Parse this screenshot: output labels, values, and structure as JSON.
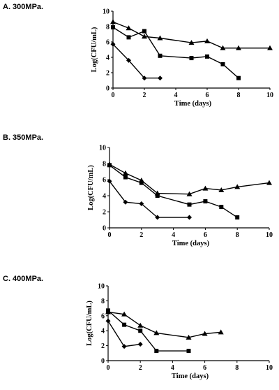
{
  "chart_data": [
    {
      "type": "line",
      "title": "A. 300MPa.",
      "xlabel": "Time (days)",
      "ylabel": "Log(CFU/mL)",
      "xlim": [
        0,
        10
      ],
      "ylim": [
        0,
        10
      ],
      "xticks": [
        0,
        2,
        4,
        6,
        8,
        10
      ],
      "yticks": [
        0,
        2,
        4,
        6,
        8,
        10
      ],
      "grid": false,
      "series": [
        {
          "marker": "triangle",
          "x": [
            0,
            1,
            2,
            3,
            5,
            6,
            7,
            8,
            10
          ],
          "y": [
            8.6,
            7.8,
            6.7,
            6.5,
            5.9,
            6.1,
            5.2,
            5.2,
            5.2
          ]
        },
        {
          "marker": "square",
          "x": [
            0,
            1,
            2,
            3,
            5,
            6,
            7,
            8
          ],
          "y": [
            7.9,
            6.6,
            7.4,
            4.2,
            3.9,
            4.1,
            3.1,
            1.3
          ]
        },
        {
          "marker": "diamond",
          "x": [
            0,
            1,
            2,
            3
          ],
          "y": [
            5.7,
            3.6,
            1.3,
            1.3
          ]
        }
      ]
    },
    {
      "type": "line",
      "title": "B. 350MPa.",
      "xlabel": "Time (days)",
      "ylabel": "Log(CFU/mL)",
      "xlim": [
        0,
        10
      ],
      "ylim": [
        0,
        10
      ],
      "xticks": [
        0,
        2,
        4,
        6,
        8,
        10
      ],
      "yticks": [
        0,
        2,
        4,
        6,
        8,
        10
      ],
      "grid": false,
      "series": [
        {
          "marker": "triangle",
          "x": [
            0,
            1,
            2,
            3,
            5,
            6,
            7,
            8,
            10
          ],
          "y": [
            7.9,
            6.8,
            5.9,
            4.3,
            4.2,
            4.9,
            4.7,
            5.1,
            5.6
          ]
        },
        {
          "marker": "square",
          "x": [
            0,
            1,
            2,
            3,
            5,
            6,
            7,
            8
          ],
          "y": [
            7.8,
            6.3,
            5.6,
            4.0,
            2.9,
            3.3,
            2.6,
            1.3
          ]
        },
        {
          "marker": "diamond",
          "x": [
            0,
            1,
            2,
            3,
            5
          ],
          "y": [
            5.8,
            3.2,
            3.0,
            1.3,
            1.3
          ]
        }
      ]
    },
    {
      "type": "line",
      "title": "C. 400MPa.",
      "xlabel": "Time (days)",
      "ylabel": "Log(CFU/mL)",
      "xlim": [
        0,
        10
      ],
      "ylim": [
        0,
        10
      ],
      "xticks": [
        0,
        2,
        4,
        6,
        8,
        10
      ],
      "yticks": [
        0,
        2,
        4,
        6,
        8,
        10
      ],
      "grid": false,
      "series": [
        {
          "marker": "triangle",
          "x": [
            0,
            1,
            2,
            3,
            5,
            6,
            7
          ],
          "y": [
            6.5,
            6.2,
            4.7,
            3.7,
            3.1,
            3.6,
            3.8
          ]
        },
        {
          "marker": "square",
          "x": [
            0,
            1,
            2,
            3,
            5
          ],
          "y": [
            6.7,
            4.8,
            4.0,
            1.3,
            1.3
          ]
        },
        {
          "marker": "diamond",
          "x": [
            0,
            1,
            2
          ],
          "y": [
            5.3,
            1.9,
            2.2
          ]
        }
      ]
    }
  ]
}
